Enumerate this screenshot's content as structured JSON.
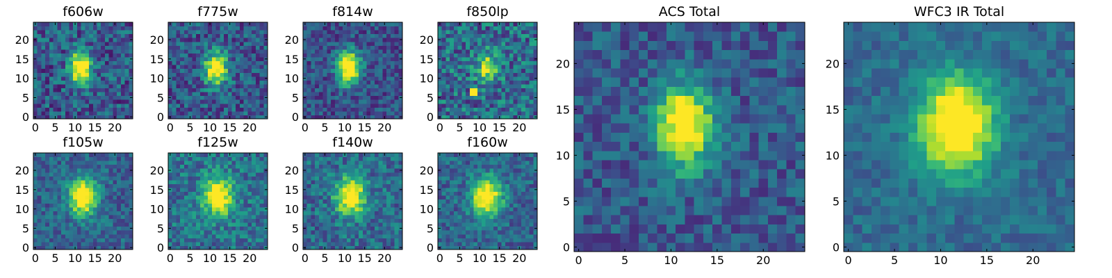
{
  "figure": {
    "colormap": "viridis",
    "grid_size": 25,
    "panels": [
      {
        "id": "f606w",
        "title": "f606w",
        "xticks": [
          "0",
          "5",
          "10",
          "15",
          "20"
        ],
        "yticks": [
          "0",
          "5",
          "10",
          "15",
          "20"
        ],
        "source": {
          "cx": 11.5,
          "cy": 12.8,
          "sx": 1.9,
          "sy": 3.0,
          "peak": 0.9,
          "noise": 0.45,
          "base": 0.28,
          "seed": 11
        }
      },
      {
        "id": "f775w",
        "title": "f775w",
        "xticks": [
          "0",
          "5",
          "10",
          "15",
          "20"
        ],
        "yticks": [
          "0",
          "5",
          "10",
          "15",
          "20"
        ],
        "source": {
          "cx": 11.5,
          "cy": 12.5,
          "sx": 2.0,
          "sy": 3.0,
          "peak": 0.85,
          "noise": 0.42,
          "base": 0.28,
          "seed": 23
        }
      },
      {
        "id": "f814w",
        "title": "f814w",
        "xticks": [
          "0",
          "5",
          "10",
          "15",
          "20"
        ],
        "yticks": [
          "0",
          "5",
          "10",
          "15",
          "20"
        ],
        "source": {
          "cx": 11.0,
          "cy": 12.8,
          "sx": 2.0,
          "sy": 3.0,
          "peak": 0.95,
          "noise": 0.35,
          "base": 0.25,
          "seed": 37
        }
      },
      {
        "id": "f850lp",
        "title": "f850lp",
        "xticks": [
          "0",
          "5",
          "10",
          "15",
          "20"
        ],
        "yticks": [
          "0",
          "5",
          "10",
          "15",
          "20"
        ],
        "source": {
          "cx": 12.0,
          "cy": 13.0,
          "sx": 2.0,
          "sy": 2.6,
          "peak": 0.55,
          "noise": 0.5,
          "base": 0.35,
          "seed": 41
        },
        "hot_pixel": {
          "x": 8.5,
          "y": 6.5,
          "size": 1.8
        }
      },
      {
        "id": "f105w",
        "title": "f105w",
        "xticks": [
          "0",
          "5",
          "10",
          "15",
          "20"
        ],
        "yticks": [
          "0",
          "5",
          "10",
          "15",
          "20"
        ],
        "source": {
          "cx": 12.0,
          "cy": 13.2,
          "sx": 2.4,
          "sy": 3.4,
          "peak": 0.85,
          "noise": 0.32,
          "base": 0.32,
          "seed": 53
        }
      },
      {
        "id": "f125w",
        "title": "f125w",
        "xticks": [
          "0",
          "5",
          "10",
          "15",
          "20"
        ],
        "yticks": [
          "0",
          "5",
          "10",
          "15",
          "20"
        ],
        "source": {
          "cx": 12.0,
          "cy": 13.3,
          "sx": 2.6,
          "sy": 3.4,
          "peak": 0.8,
          "noise": 0.38,
          "base": 0.38,
          "seed": 67
        }
      },
      {
        "id": "f140w",
        "title": "f140w",
        "xticks": [
          "0",
          "5",
          "10",
          "15",
          "20"
        ],
        "yticks": [
          "0",
          "5",
          "10",
          "15",
          "20"
        ],
        "source": {
          "cx": 11.5,
          "cy": 13.3,
          "sx": 2.6,
          "sy": 3.4,
          "peak": 0.8,
          "noise": 0.38,
          "base": 0.35,
          "seed": 79
        }
      },
      {
        "id": "f160w",
        "title": "f160w",
        "xticks": [
          "0",
          "5",
          "10",
          "15",
          "20"
        ],
        "yticks": [
          "0",
          "5",
          "10",
          "15",
          "20"
        ],
        "source": {
          "cx": 11.8,
          "cy": 13.0,
          "sx": 2.6,
          "sy": 3.4,
          "peak": 0.85,
          "noise": 0.33,
          "base": 0.33,
          "seed": 83
        }
      },
      {
        "id": "acs-total",
        "title": "ACS Total",
        "xticks": [
          "0",
          "5",
          "10",
          "15",
          "20"
        ],
        "yticks": [
          "0",
          "5",
          "10",
          "15",
          "20"
        ],
        "source": {
          "cx": 11.5,
          "cy": 13.2,
          "sx": 2.1,
          "sy": 3.1,
          "peak": 0.9,
          "noise": 0.32,
          "base": 0.28,
          "seed": 97
        }
      },
      {
        "id": "wfc3-ir-total",
        "title": "WFC3 IR Total",
        "xticks": [
          "0",
          "5",
          "10",
          "15",
          "20"
        ],
        "yticks": [
          "0",
          "5",
          "10",
          "15",
          "20"
        ],
        "source": {
          "cx": 11.8,
          "cy": 13.3,
          "sx": 2.8,
          "sy": 3.6,
          "peak": 0.9,
          "noise": 0.22,
          "base": 0.35,
          "seed": 101
        }
      }
    ]
  }
}
